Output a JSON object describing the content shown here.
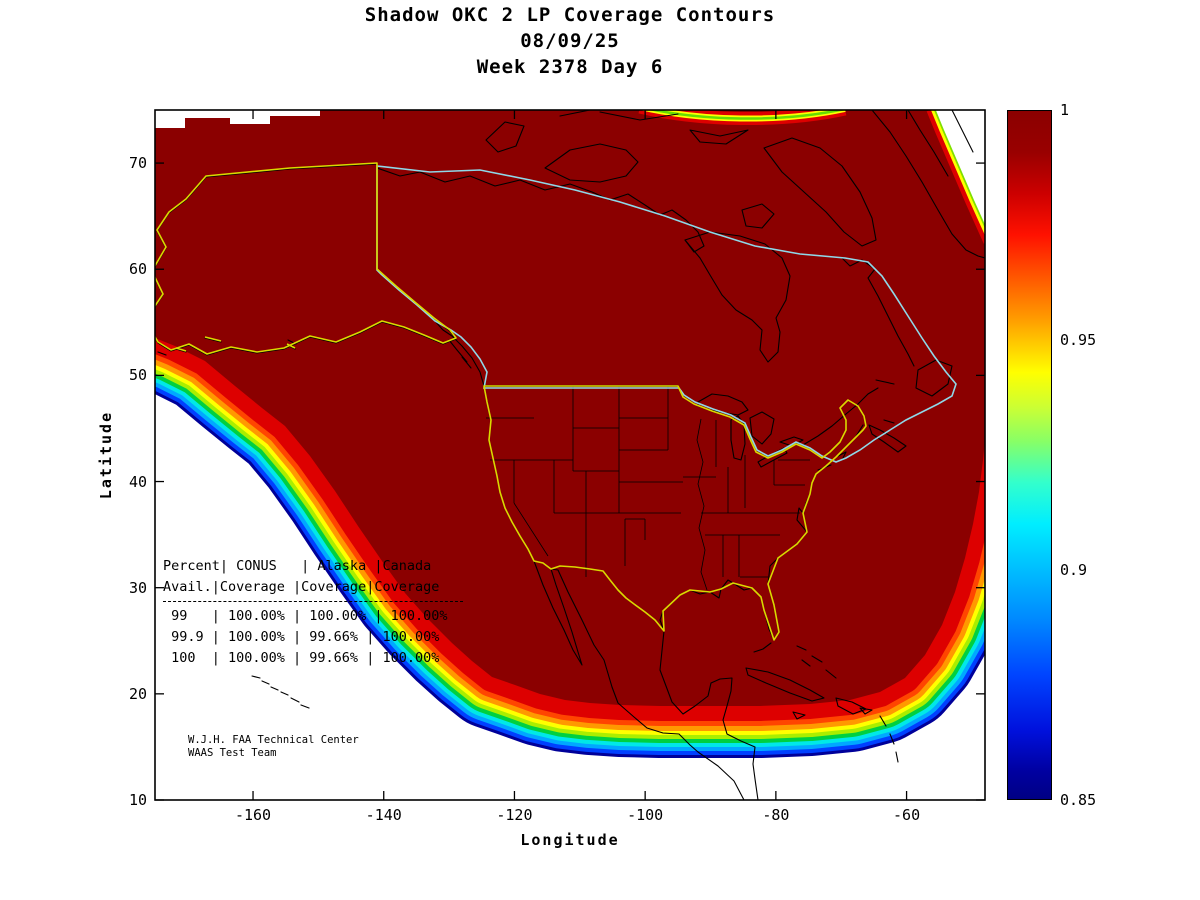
{
  "title": {
    "line1": "Shadow OKC 2 LP Coverage Contours",
    "line2": "08/09/25",
    "line3": "Week 2378 Day 6"
  },
  "axes": {
    "xlabel": "Longitude",
    "ylabel": "Latitude",
    "x_ticks": [
      -160,
      -140,
      -120,
      -100,
      -80,
      -60
    ],
    "y_ticks": [
      70,
      60,
      50,
      40,
      30,
      20,
      10
    ],
    "xlim": [
      -175,
      -48
    ],
    "ylim": [
      10,
      75
    ]
  },
  "colorbar": {
    "tick_labels": [
      "1",
      "0.95",
      "0.9",
      "0.85"
    ],
    "tick_values": [
      1,
      0.95,
      0.9,
      0.85
    ],
    "min": 0.85,
    "max": 1
  },
  "overlay_table": {
    "header_lines": [
      "Percent| CONUS   | Alaska |Canada",
      "Avail.|Coverage |Coverage|Coverage"
    ],
    "rows": [
      " 99   | 100.00% | 100.00% | 100.00%",
      " 99.9 | 100.00% | 99.66% | 100.00%",
      " 100  | 100.00% | 99.66% | 100.00%"
    ]
  },
  "attribution": {
    "line1": "W.J.H. FAA Technical Center",
    "line2": "WAAS Test Team"
  },
  "chart_data": {
    "type": "heatmap",
    "subtype": "geographic-coverage-contours",
    "title": "Shadow OKC 2 LP Coverage Contours",
    "date": "08/09/25",
    "week": 2378,
    "day": 6,
    "xlabel": "Longitude",
    "ylabel": "Latitude",
    "xlim": [
      -175,
      -48
    ],
    "ylim": [
      10,
      75
    ],
    "x_ticks": [
      -160,
      -140,
      -120,
      -100,
      -80,
      -60
    ],
    "y_ticks": [
      10,
      20,
      30,
      40,
      50,
      60,
      70
    ],
    "colorbar": {
      "min": 0.85,
      "max": 1.0,
      "ticks": [
        0.85,
        0.9,
        0.95,
        1
      ],
      "colormap": "jet"
    },
    "coverage_statistics": {
      "columns": [
        "Percent Avail.",
        "CONUS Coverage",
        "Alaska Coverage",
        "Canada Coverage"
      ],
      "rows": [
        {
          "percent_avail": "99",
          "conus": "100.00%",
          "alaska": "100.00%",
          "canada": "100.00%"
        },
        {
          "percent_avail": "99.9",
          "conus": "100.00%",
          "alaska": "99.66%",
          "canada": "100.00%"
        },
        {
          "percent_avail": "100",
          "conus": "100.00%",
          "alaska": "99.66%",
          "canada": "100.00%"
        }
      ]
    },
    "contour_band_colors": [
      "#8B0000",
      "#DD0000",
      "#FF4500",
      "#FF9900",
      "#FFFF00",
      "#AAEE00",
      "#00D040",
      "#00E8E8",
      "#00A8FF",
      "#0040FF",
      "#000099"
    ],
    "regions_outlined": [
      "CONUS (yellow)",
      "Alaska (yellow)",
      "Canada (cyan)"
    ]
  }
}
